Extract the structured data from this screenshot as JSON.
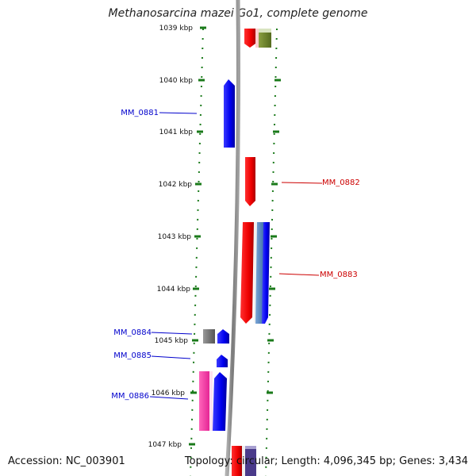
{
  "title": "Methanosarcina mazei Go1, complete genome",
  "footer": {
    "accession": "Accession: NC_003901",
    "topology": "Topology: circular; Length: 4,096,345 bp; Genes: 3,434"
  },
  "ticks": [
    "1039 kbp",
    "1040 kbp",
    "1041 kbp",
    "1042 kbp",
    "1043 kbp",
    "1044 kbp",
    "1045 kbp",
    "1046 kbp",
    "1047 kbp"
  ],
  "gene_labels": [
    {
      "name": "MM_0881",
      "strand": "minus"
    },
    {
      "name": "MM_0882",
      "strand": "plus"
    },
    {
      "name": "MM_0883",
      "strand": "plus"
    },
    {
      "name": "MM_0884",
      "strand": "minus"
    },
    {
      "name": "MM_0885",
      "strand": "minus"
    },
    {
      "name": "MM_0886",
      "strand": "minus"
    }
  ],
  "colors": {
    "minus_label": "#0000cc",
    "plus_label": "#cc0000",
    "tick": "#1a7a1a",
    "backbone": "#888888"
  }
}
